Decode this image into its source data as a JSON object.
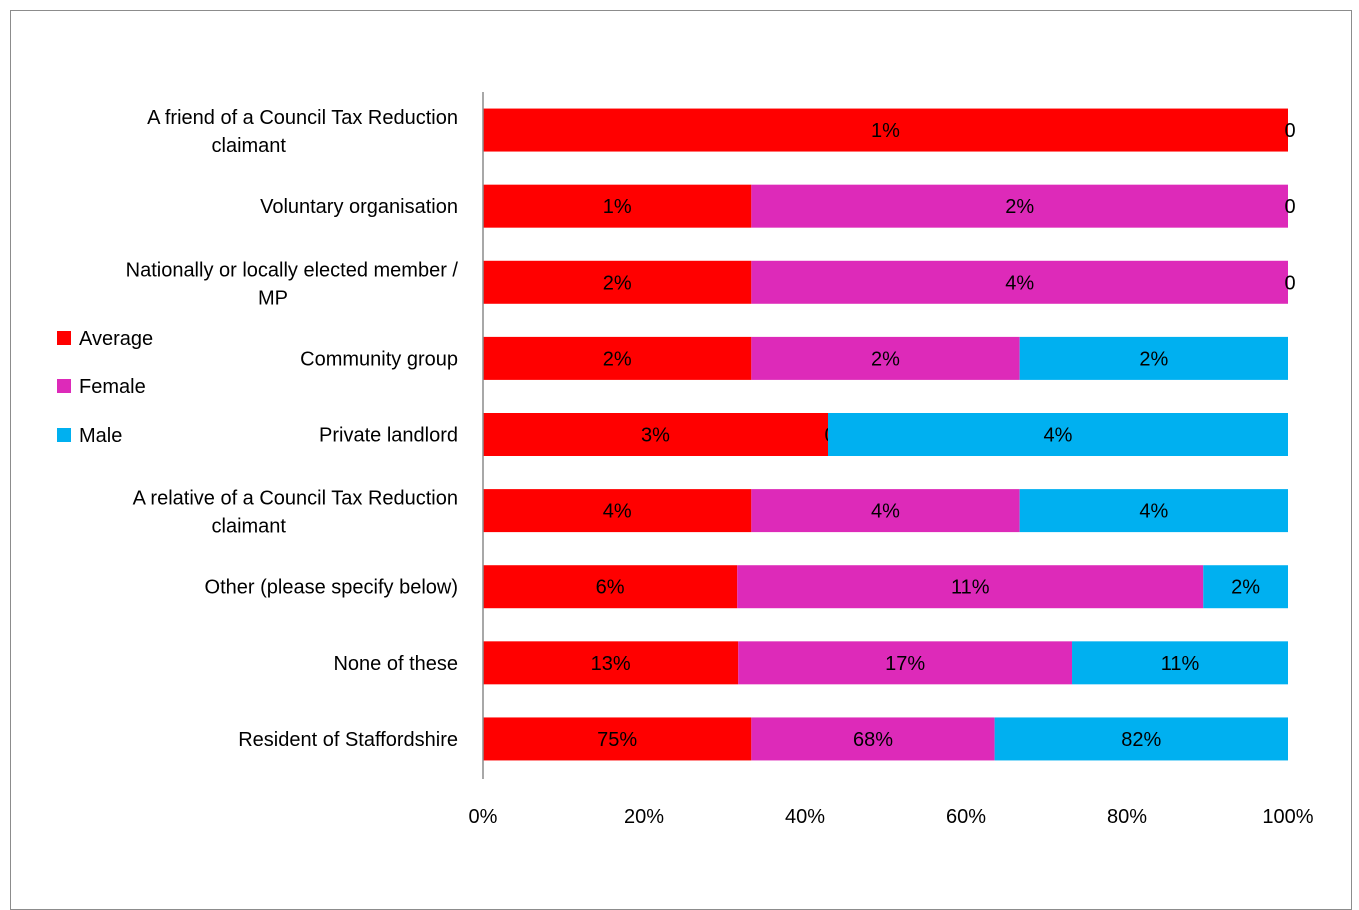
{
  "chart_data": {
    "type": "bar",
    "orientation": "horizontal",
    "stacked": "percent",
    "categories": [
      "A friend of a Council Tax Reduction claimant",
      "Voluntary organisation",
      "Nationally or locally elected member / MP",
      "Community group",
      "Private landlord",
      "A relative of a Council Tax Reduction claimant",
      "Other (please specify below)",
      "None of these",
      "Resident of Staffordshire"
    ],
    "series": [
      {
        "name": "Average",
        "color": "#ff0000",
        "values": [
          1,
          1,
          2,
          2,
          3,
          4,
          6,
          13,
          75
        ],
        "labels": [
          "1%",
          "1%",
          "2%",
          "2%",
          "3%",
          "4%",
          "6%",
          "13%",
          "75%"
        ]
      },
      {
        "name": "Female",
        "color": "#dd2ab9",
        "values": [
          0,
          2,
          4,
          2,
          0,
          4,
          11,
          17,
          68
        ],
        "labels": [
          null,
          "2%",
          "4%",
          "2%",
          "0",
          "4%",
          "11%",
          "17%",
          "68%"
        ]
      },
      {
        "name": "Male",
        "color": "#00b0f0",
        "values": [
          0,
          0,
          0,
          2,
          4,
          4,
          2,
          11,
          82
        ],
        "labels": [
          "0",
          "0",
          "0",
          "2%",
          "4%",
          "4%",
          "2%",
          "11%",
          "82%"
        ]
      }
    ],
    "xlim": [
      0,
      100
    ],
    "xticks": [
      "0%",
      "20%",
      "40%",
      "60%",
      "80%",
      "100%"
    ],
    "legend_position": "left",
    "grid": false
  }
}
